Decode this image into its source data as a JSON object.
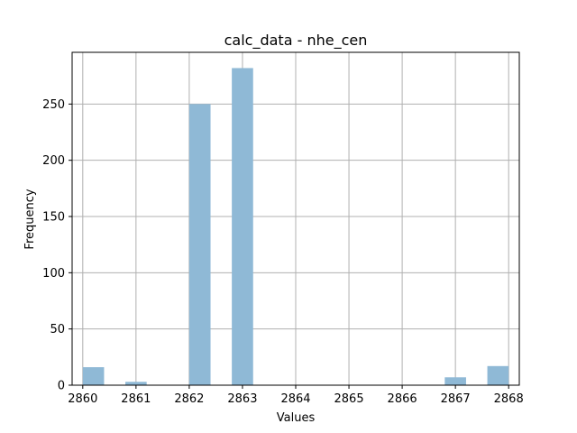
{
  "chart_data": {
    "type": "bar",
    "title": "calc_data - nhe_cen",
    "xlabel": "Values",
    "ylabel": "Frequency",
    "xlim": [
      2859.8,
      2868.2
    ],
    "ylim": [
      0,
      296
    ],
    "x_ticks": [
      2860,
      2861,
      2862,
      2863,
      2864,
      2865,
      2866,
      2867,
      2868
    ],
    "y_ticks": [
      0,
      50,
      100,
      150,
      200,
      250
    ],
    "grid": true,
    "bar_color": "#8fb9d6",
    "bars": [
      {
        "x0": 2860.0,
        "x1": 2860.4,
        "value": 16
      },
      {
        "x0": 2860.8,
        "x1": 2861.2,
        "value": 3
      },
      {
        "x0": 2861.2,
        "x1": 2861.6,
        "value": 0
      },
      {
        "x0": 2861.6,
        "x1": 2862.0,
        "value": 0
      },
      {
        "x0": 2862.0,
        "x1": 2862.4,
        "value": 250
      },
      {
        "x0": 2862.8,
        "x1": 2863.2,
        "value": 282
      },
      {
        "x0": 2866.8,
        "x1": 2867.2,
        "value": 7
      },
      {
        "x0": 2867.6,
        "x1": 2868.0,
        "value": 17
      }
    ]
  }
}
